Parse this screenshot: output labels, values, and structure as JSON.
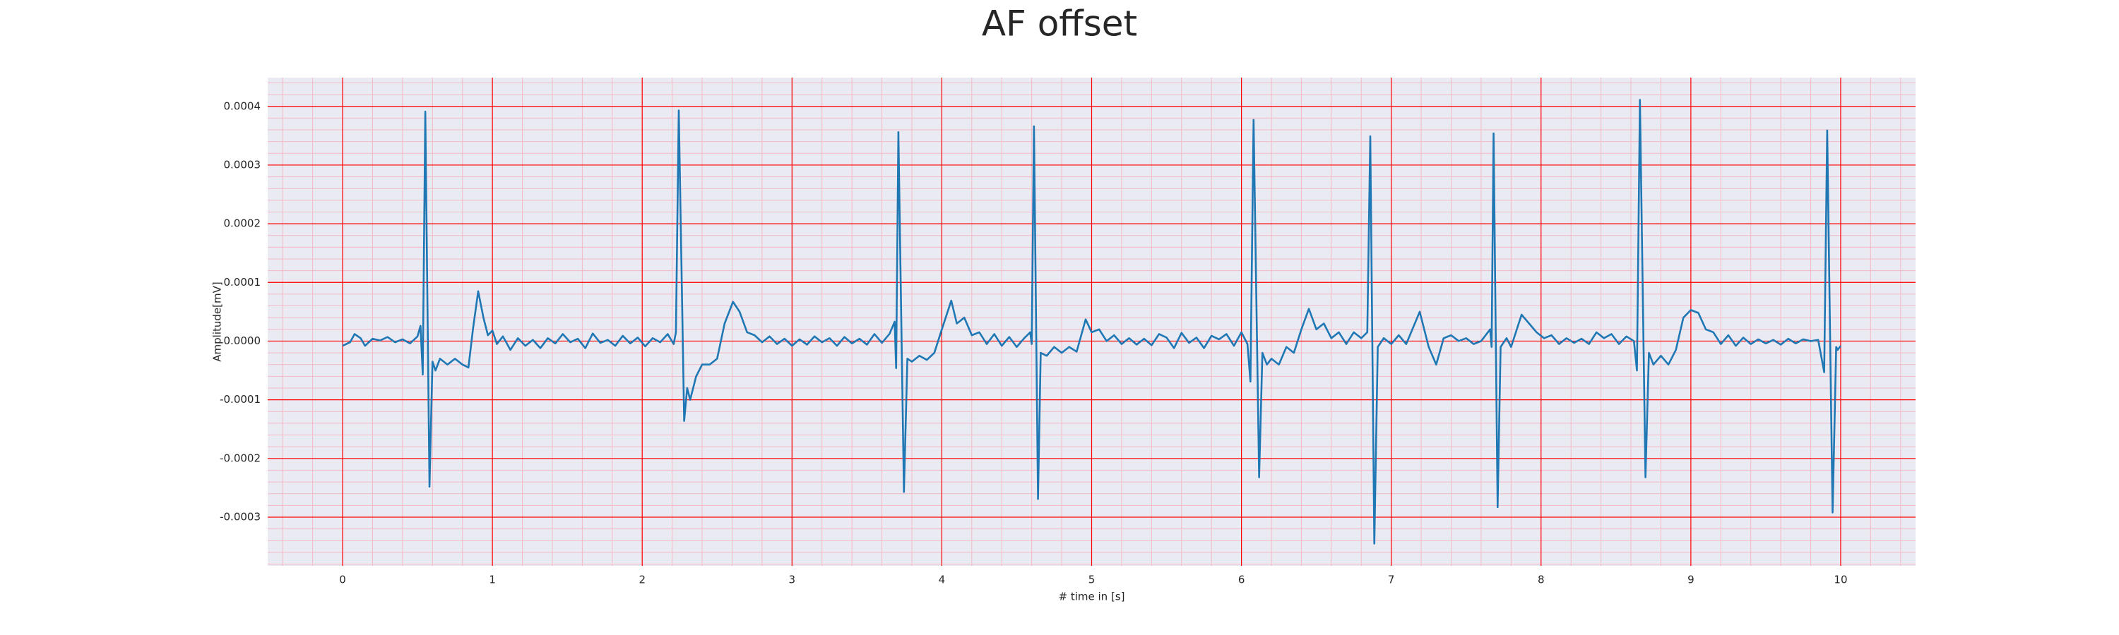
{
  "chart_data": {
    "type": "line",
    "title": "AF offset",
    "x_label": "# time in [s]",
    "y_label": "Amplitude[mV]",
    "color": "#1f77b4",
    "grid": true,
    "grid_color": "#ff0000",
    "minor_grid": true,
    "minor_grid_color": "#f4b8c6",
    "background": "#eaeaf2",
    "xlim": [
      -0.5,
      10.5
    ],
    "ylim": [
      -0.000383,
      0.000449
    ],
    "xticks": [
      0,
      1,
      2,
      3,
      4,
      5,
      6,
      7,
      8,
      9,
      10
    ],
    "yticks": [
      -0.0003,
      -0.0002,
      -0.0001,
      {
        "value": 0,
        "label": "0.0000"
      },
      0.0001,
      0.0002,
      0.0003,
      0.0004
    ],
    "x": [
      0,
      0.05,
      0.08,
      0.12,
      0.15,
      0.2,
      0.25,
      0.3,
      0.35,
      0.4,
      0.45,
      0.5,
      0.52,
      0.535,
      0.552,
      0.58,
      0.6,
      0.62,
      0.65,
      0.7,
      0.75,
      0.8,
      0.84,
      0.87,
      0.905,
      0.94,
      0.97,
      1.0,
      1.03,
      1.07,
      1.12,
      1.17,
      1.22,
      1.27,
      1.32,
      1.37,
      1.42,
      1.47,
      1.52,
      1.57,
      1.62,
      1.67,
      1.72,
      1.77,
      1.82,
      1.87,
      1.92,
      1.97,
      2.02,
      2.07,
      2.12,
      2.17,
      2.21,
      2.225,
      2.244,
      2.28,
      2.3,
      2.32,
      2.36,
      2.4,
      2.45,
      2.5,
      2.55,
      2.606,
      2.65,
      2.7,
      2.75,
      2.8,
      2.85,
      2.9,
      2.95,
      3.0,
      3.05,
      3.1,
      3.15,
      3.2,
      3.25,
      3.3,
      3.35,
      3.4,
      3.45,
      3.5,
      3.55,
      3.6,
      3.65,
      3.685,
      3.695,
      3.71,
      3.747,
      3.77,
      3.8,
      3.85,
      3.9,
      3.95,
      4.0,
      4.063,
      4.1,
      4.15,
      4.2,
      4.25,
      4.3,
      4.35,
      4.4,
      4.45,
      4.5,
      4.55,
      4.59,
      4.6,
      4.615,
      4.642,
      4.66,
      4.7,
      4.75,
      4.8,
      4.85,
      4.9,
      4.96,
      5.0,
      5.05,
      5.1,
      5.15,
      5.2,
      5.25,
      5.3,
      5.35,
      5.4,
      5.45,
      5.5,
      5.55,
      5.6,
      5.65,
      5.7,
      5.75,
      5.8,
      5.85,
      5.9,
      5.95,
      6.0,
      6.04,
      6.06,
      6.081,
      6.118,
      6.14,
      6.17,
      6.2,
      6.25,
      6.3,
      6.35,
      6.4,
      6.45,
      6.5,
      6.55,
      6.6,
      6.65,
      6.7,
      6.75,
      6.8,
      6.84,
      6.86,
      6.887,
      6.91,
      6.95,
      7.0,
      7.05,
      7.1,
      7.19,
      7.25,
      7.3,
      7.35,
      7.4,
      7.45,
      7.5,
      7.55,
      7.6,
      7.66,
      7.67,
      7.683,
      7.71,
      7.73,
      7.77,
      7.8,
      7.87,
      7.92,
      7.97,
      8.02,
      8.07,
      8.12,
      8.17,
      8.22,
      8.27,
      8.32,
      8.37,
      8.42,
      8.47,
      8.52,
      8.57,
      8.62,
      8.64,
      8.66,
      8.697,
      8.72,
      8.75,
      8.8,
      8.85,
      8.9,
      8.95,
      9.0,
      9.05,
      9.1,
      9.15,
      9.2,
      9.25,
      9.3,
      9.35,
      9.4,
      9.45,
      9.5,
      9.55,
      9.6,
      9.65,
      9.7,
      9.75,
      9.8,
      9.85,
      9.89,
      9.91,
      9.946,
      9.97,
      9.98,
      10.0
    ],
    "values": [
      -8e-06,
      -2e-06,
      1.2e-05,
      5e-06,
      -8e-06,
      4e-06,
      1e-06,
      7e-06,
      -2e-06,
      3e-06,
      -4e-06,
      8e-06,
      2.6e-05,
      -5.7e-05,
      0.000391,
      -0.000248,
      -3.5e-05,
      -5e-05,
      -3e-05,
      -4e-05,
      -3e-05,
      -4e-05,
      -4.5e-05,
      2e-05,
      8.5e-05,
      4e-05,
      1e-05,
      1.8e-05,
      -5e-06,
      8e-06,
      -1.5e-05,
      5e-06,
      -8e-06,
      2e-06,
      -1.2e-05,
      5e-06,
      -4e-06,
      1.2e-05,
      -2e-06,
      4e-06,
      -1.2e-05,
      1.3e-05,
      -3e-06,
      2e-06,
      -8e-06,
      9e-06,
      -4e-06,
      6e-06,
      -9e-06,
      5e-06,
      -2e-06,
      1.2e-05,
      -5e-06,
      1.5e-05,
      0.000393,
      -0.000136,
      -8e-05,
      -0.0001,
      -6e-05,
      -4e-05,
      -4e-05,
      -3e-05,
      3e-05,
      6.7e-05,
      5e-05,
      1.5e-05,
      1e-05,
      -2e-06,
      8e-06,
      -5e-06,
      4e-06,
      -8e-06,
      3e-06,
      -6e-06,
      8e-06,
      -2e-06,
      5e-06,
      -8e-06,
      7e-06,
      -4e-06,
      4e-06,
      -6e-06,
      1.2e-05,
      -3e-06,
      1.2e-05,
      3.3e-05,
      -4.6e-05,
      0.000356,
      -0.000257,
      -3e-05,
      -3.5e-05,
      -2.5e-05,
      -3.2e-05,
      -2e-05,
      2e-05,
      6.9e-05,
      3e-05,
      4e-05,
      1e-05,
      1.5e-05,
      -5e-06,
      1.2e-05,
      -8e-06,
      7e-06,
      -1e-05,
      5e-06,
      1.5e-05,
      -5e-06,
      0.000366,
      -0.000269,
      -2e-05,
      -2.5e-05,
      -1e-05,
      -2e-05,
      -1e-05,
      -1.8e-05,
      3.7e-05,
      1.5e-05,
      2e-05,
      0,
      1e-05,
      -5e-06,
      5e-06,
      -6e-06,
      4e-06,
      -7e-06,
      1.2e-05,
      6e-06,
      -1.2e-05,
      1.4e-05,
      -3e-06,
      6e-06,
      -1.2e-05,
      9e-06,
      3e-06,
      1.2e-05,
      -8e-06,
      1.5e-05,
      -5e-06,
      -6.9e-05,
      0.000377,
      -0.000232,
      -2e-05,
      -4e-05,
      -3e-05,
      -4e-05,
      -1e-05,
      -2e-05,
      2e-05,
      5.5e-05,
      2e-05,
      3e-05,
      5e-06,
      1.5e-05,
      -5e-06,
      1.5e-05,
      5e-06,
      1.5e-05,
      0.000349,
      -0.000345,
      -1e-05,
      5e-06,
      -5e-06,
      1e-05,
      -5e-06,
      5e-05,
      -1e-05,
      -4e-05,
      5e-06,
      1e-05,
      0,
      5e-06,
      -5e-06,
      0,
      2e-05,
      -1e-05,
      0.000354,
      -0.000283,
      -1e-05,
      5e-06,
      -1e-05,
      4.5e-05,
      3e-05,
      1.5e-05,
      5e-06,
      1e-05,
      -5e-06,
      5e-06,
      -3e-06,
      4e-06,
      -5e-06,
      1.5e-05,
      5e-06,
      1.2e-05,
      -5e-06,
      8e-06,
      0,
      -5e-05,
      0.000411,
      -0.000232,
      -2e-05,
      -4e-05,
      -2.5e-05,
      -4e-05,
      -1.5e-05,
      4e-05,
      5.3e-05,
      4.8e-05,
      2e-05,
      1.5e-05,
      -5e-06,
      1e-05,
      -8e-06,
      6e-06,
      -5e-06,
      3e-06,
      -4e-06,
      2e-06,
      -6e-06,
      4e-06,
      -4e-06,
      3e-06,
      0,
      2e-06,
      -5.3e-05,
      0.000359,
      -0.000292,
      -1e-05,
      -1.5e-05,
      -8e-06
    ]
  }
}
